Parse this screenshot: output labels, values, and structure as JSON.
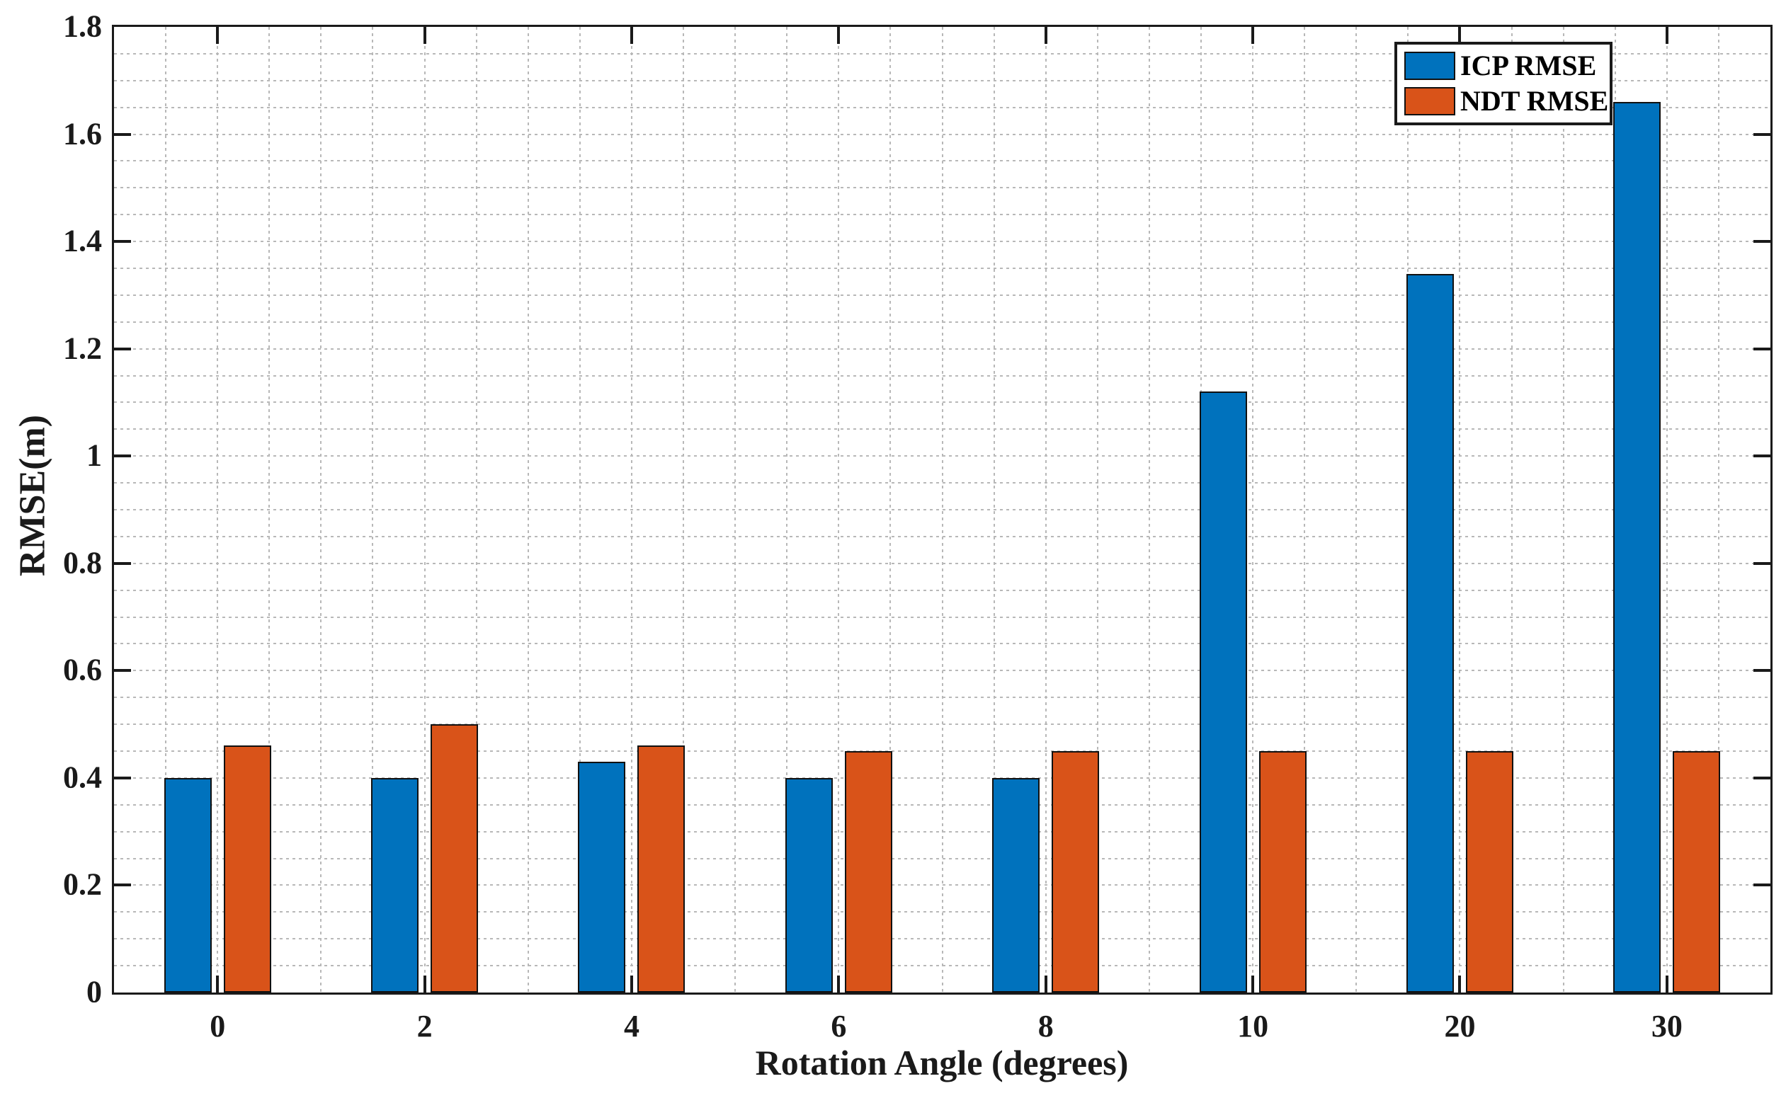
{
  "chart_data": {
    "type": "bar",
    "title": "",
    "xlabel": "Rotation Angle (degrees)",
    "ylabel": "RMSE(m)",
    "categories": [
      "0",
      "2",
      "4",
      "6",
      "8",
      "10",
      "20",
      "30"
    ],
    "series": [
      {
        "name": "ICP RMSE",
        "color": "#0072BD",
        "values": [
          0.4,
          0.4,
          0.43,
          0.4,
          0.4,
          1.12,
          1.34,
          1.66
        ]
      },
      {
        "name": "NDT RMSE",
        "color": "#D95319",
        "values": [
          0.46,
          0.5,
          0.46,
          0.45,
          0.45,
          0.45,
          0.45,
          0.45
        ]
      }
    ],
    "ylim": [
      0,
      1.8
    ],
    "ytick_step": 0.2,
    "ytick_labels": [
      "0",
      "0.2",
      "0.4",
      "0.6",
      "0.8",
      "1",
      "1.2",
      "1.4",
      "1.6",
      "1.8"
    ],
    "y_minor_step": 0.05,
    "x_minor_divisions_per_category": 4,
    "grid": "minor-dotted",
    "grid_color": "#b8b8b8",
    "axis_color": "#1a1a1a",
    "legend_position": "top-right",
    "legend_entries": [
      "ICP RMSE",
      "NDT RMSE"
    ]
  }
}
